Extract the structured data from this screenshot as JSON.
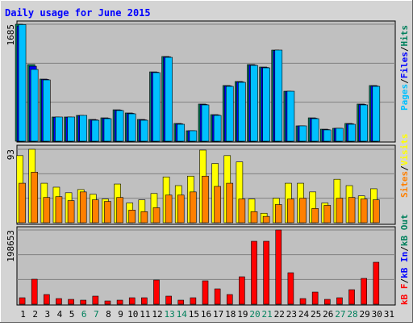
{
  "title": "Daily usage for June 2015",
  "separator": "/",
  "categories": [
    "1",
    "2",
    "3",
    "4",
    "5",
    "6",
    "7",
    "8",
    "9",
    "10",
    "11",
    "12",
    "13",
    "14",
    "15",
    "16",
    "17",
    "18",
    "19",
    "20",
    "21",
    "22",
    "23",
    "24",
    "25",
    "26",
    "27",
    "28",
    "29",
    "30",
    "31"
  ],
  "highlight_days": [
    5,
    6,
    12,
    13,
    19,
    20,
    26,
    27
  ],
  "highlight_color": "#00805c",
  "chart_data": [
    {
      "type": "bar",
      "ylim": [
        0,
        1685
      ],
      "yticks": [
        1685
      ],
      "series": [
        {
          "name": "Pages",
          "color": "#00c0ff",
          "values": [
            1680,
            1034,
            883,
            349,
            349,
            372,
            302,
            325,
            442,
            395,
            302,
            988,
            1208,
            244,
            151,
            523,
            372,
            790,
            848,
            1092,
            1057,
            1313,
            720,
            221,
            325,
            163,
            186,
            244,
            523,
            790,
            0
          ]
        },
        {
          "name": "Files",
          "color": "#0000ff",
          "values": [
            1660,
            1080,
            890,
            345,
            345,
            368,
            308,
            331,
            448,
            401,
            308,
            994,
            1214,
            250,
            151,
            529,
            378,
            796,
            854,
            1098,
            1063,
            1305,
            718,
            221,
            331,
            168,
            186,
            250,
            529,
            796,
            0
          ]
        },
        {
          "name": "Hits",
          "color": "#00805c",
          "values": [
            1685,
            1104,
            895,
            349,
            349,
            372,
            314,
            337,
            453,
            407,
            314,
            999,
            1220,
            256,
            151,
            535,
            383,
            802,
            860,
            1104,
            1069,
            1313,
            720,
            221,
            337,
            174,
            186,
            256,
            535,
            802,
            0
          ]
        }
      ]
    },
    {
      "type": "bar",
      "ylim": [
        0,
        93
      ],
      "yticks": [
        93
      ],
      "series": [
        {
          "name": "Sites",
          "color": "#ff8000",
          "values": [
            50,
            64,
            32,
            33,
            28,
            39,
            29,
            27,
            32,
            16,
            14,
            19,
            35,
            35,
            39,
            59,
            46,
            50,
            30,
            14,
            8,
            23,
            30,
            31,
            18,
            22,
            31,
            32,
            30,
            29,
            0
          ]
        },
        {
          "name": "Visits",
          "color": "#ffff00",
          "values": [
            85,
            93,
            50,
            45,
            38,
            42,
            36,
            30,
            49,
            25,
            29,
            37,
            58,
            47,
            59,
            92,
            75,
            85,
            77,
            30,
            12,
            31,
            50,
            50,
            39,
            25,
            55,
            47,
            34,
            43,
            0
          ]
        }
      ]
    },
    {
      "type": "bar",
      "ylim": [
        0,
        198653
      ],
      "yticks": [
        198653
      ],
      "series": [
        {
          "name": "kB F",
          "color": "#ff0000",
          "values": [
            17272,
            66930,
            25908,
            15113,
            12954,
            10795,
            21590,
            8636,
            10795,
            17272,
            17272,
            64770,
            21590,
            10795,
            17272,
            62611,
            41021,
            25908,
            73406,
            168402,
            168402,
            198653,
            84201,
            15113,
            32385,
            12954,
            17272,
            38862,
            69088,
            112268,
            0
          ]
        },
        {
          "name": "kB In",
          "color": "#0000ff",
          "values": [
            0,
            0,
            0,
            0,
            0,
            0,
            0,
            0,
            0,
            0,
            0,
            0,
            0,
            0,
            0,
            0,
            0,
            0,
            0,
            0,
            0,
            0,
            0,
            0,
            0,
            0,
            0,
            0,
            0,
            0,
            0
          ]
        },
        {
          "name": "kB Out",
          "color": "#00805c",
          "values": [
            0,
            0,
            0,
            0,
            0,
            0,
            0,
            0,
            0,
            0,
            0,
            0,
            0,
            0,
            0,
            0,
            0,
            0,
            0,
            0,
            0,
            0,
            0,
            0,
            0,
            0,
            0,
            0,
            0,
            0,
            0
          ]
        }
      ]
    }
  ]
}
